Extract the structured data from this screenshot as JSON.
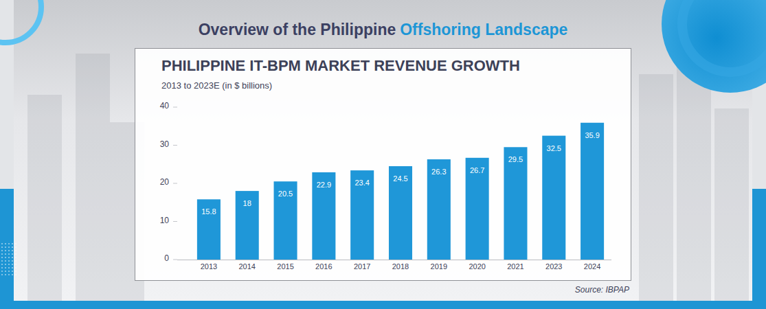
{
  "header": {
    "title_parts": [
      "Overview of the Philippine",
      "Offshoring Landscape"
    ]
  },
  "chart_data": {
    "type": "bar",
    "title": "PHILIPPINE IT-BPM MARKET REVENUE GROWTH",
    "subtitle": "2013 to 2023E (in $ billions)",
    "source": "Source: IBPAP",
    "categories": [
      "2013",
      "2014",
      "2015",
      "2016",
      "2017",
      "2018",
      "2019",
      "2020",
      "2021",
      "2023",
      "2024"
    ],
    "values": [
      15.8,
      18,
      20.5,
      22.9,
      23.4,
      24.5,
      26.3,
      26.7,
      29.5,
      32.5,
      35.9
    ],
    "color": "#1f97d8",
    "ylim": [
      0,
      40
    ],
    "yticks": [
      0,
      10,
      20,
      30,
      40
    ],
    "grid": false,
    "data_labels": true
  }
}
